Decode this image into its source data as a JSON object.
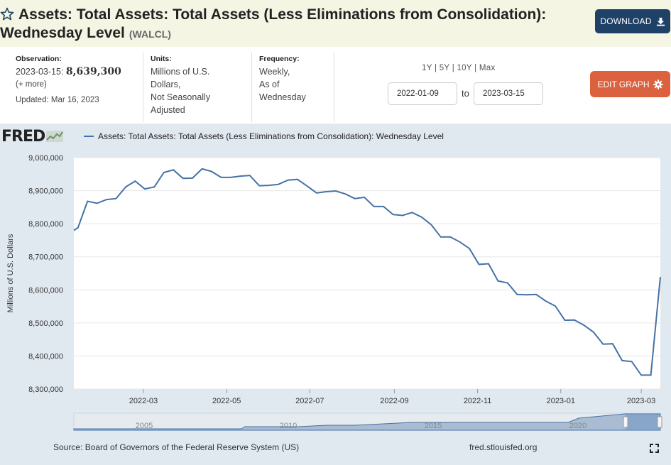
{
  "header": {
    "title": "Assets: Total Assets: Total Assets (Less Eliminations from Consolidation): Wednesday Level",
    "series_id": "(WALCL)",
    "download_label": "DOWNLOAD",
    "star_icon": "star-outline-icon",
    "download_icon": "download-icon"
  },
  "meta": {
    "observation_label": "Observation:",
    "observation_date": "2023-03-15:",
    "observation_value": "8,639,300",
    "more_label": "(+ more)",
    "updated": "Updated: Mar 16, 2023",
    "units_label": "Units:",
    "units_lines": [
      "Millions of U.S.",
      "Dollars,",
      "Not Seasonally",
      "Adjusted"
    ],
    "frequency_label": "Frequency:",
    "frequency_lines": [
      "Weekly,",
      "As of",
      "Wednesday"
    ]
  },
  "controls": {
    "range_links": "1Y | 5Y | 10Y | Max",
    "start_date": "2022-01-09",
    "to_label": "to",
    "end_date": "2023-03-15",
    "edit_label": "EDIT GRAPH",
    "edit_icon": "gear-icon"
  },
  "chart_data": {
    "type": "line",
    "logo": "FRED",
    "legend_label": "Assets: Total Assets: Total Assets (Less Eliminations from Consolidation): Wednesday Level",
    "ylabel": "Millions of U.S. Dollars",
    "ylim": [
      8300000,
      9000000
    ],
    "yticks": [
      "8,300,000",
      "8,400,000",
      "8,500,000",
      "8,600,000",
      "8,700,000",
      "8,800,000",
      "8,900,000",
      "9,000,000"
    ],
    "ytick_values": [
      8300000,
      8400000,
      8500000,
      8600000,
      8700000,
      8800000,
      8900000,
      9000000
    ],
    "xlim": [
      "2022-01-09",
      "2023-03-15"
    ],
    "xticks": [
      "2022-03",
      "2022-05",
      "2022-07",
      "2022-09",
      "2022-11",
      "2023-01",
      "2023-03"
    ],
    "grid": true,
    "color": "#4572a7",
    "series": [
      {
        "name": "Assets: Total Assets: Total Assets (Less Eliminations from Consolidation): Wednesday Level",
        "x": [
          "2022-01-12",
          "2022-01-19",
          "2022-01-26",
          "2022-02-02",
          "2022-02-09",
          "2022-02-16",
          "2022-02-23",
          "2022-03-02",
          "2022-03-09",
          "2022-03-16",
          "2022-03-23",
          "2022-03-30",
          "2022-04-06",
          "2022-04-13",
          "2022-04-20",
          "2022-04-27",
          "2022-05-04",
          "2022-05-11",
          "2022-05-18",
          "2022-05-25",
          "2022-06-01",
          "2022-06-08",
          "2022-06-15",
          "2022-06-22",
          "2022-06-29",
          "2022-07-06",
          "2022-07-13",
          "2022-07-20",
          "2022-07-27",
          "2022-08-03",
          "2022-08-10",
          "2022-08-17",
          "2022-08-24",
          "2022-08-31",
          "2022-09-07",
          "2022-09-14",
          "2022-09-21",
          "2022-09-28",
          "2022-10-05",
          "2022-10-12",
          "2022-10-19",
          "2022-10-26",
          "2022-11-02",
          "2022-11-09",
          "2022-11-16",
          "2022-11-23",
          "2022-11-30",
          "2022-12-07",
          "2022-12-14",
          "2022-12-21",
          "2022-12-28",
          "2023-01-04",
          "2023-01-11",
          "2023-01-18",
          "2023-01-25",
          "2023-02-01",
          "2023-02-08",
          "2023-02-15",
          "2023-02-22",
          "2023-03-01",
          "2023-03-08",
          "2023-03-15"
        ],
        "values": [
          8788000,
          8868000,
          8862000,
          8873000,
          8876000,
          8911000,
          8929000,
          8905000,
          8911000,
          8955000,
          8963000,
          8937000,
          8938000,
          8966000,
          8958000,
          8940000,
          8940000,
          8944000,
          8946000,
          8915000,
          8916000,
          8919000,
          8932000,
          8934000,
          8914000,
          8893000,
          8897000,
          8899000,
          8890000,
          8876000,
          8880000,
          8852000,
          8852000,
          8828000,
          8825000,
          8834000,
          8820000,
          8797000,
          8760000,
          8760000,
          8745000,
          8725000,
          8677000,
          8679000,
          8627000,
          8621000,
          8586000,
          8585000,
          8586000,
          8566000,
          8551000,
          8508000,
          8509000,
          8493000,
          8472000,
          8436000,
          8437000,
          8386000,
          8383000,
          8342000,
          8342000,
          8639300
        ]
      }
    ],
    "navigator_labels": [
      "2005",
      "2010",
      "2015",
      "2020"
    ]
  },
  "footer": {
    "source": "Source: Board of Governors of the Federal Reserve System (US)",
    "url": "fred.stlouisfed.org",
    "expand_icon": "fullscreen-icon"
  }
}
